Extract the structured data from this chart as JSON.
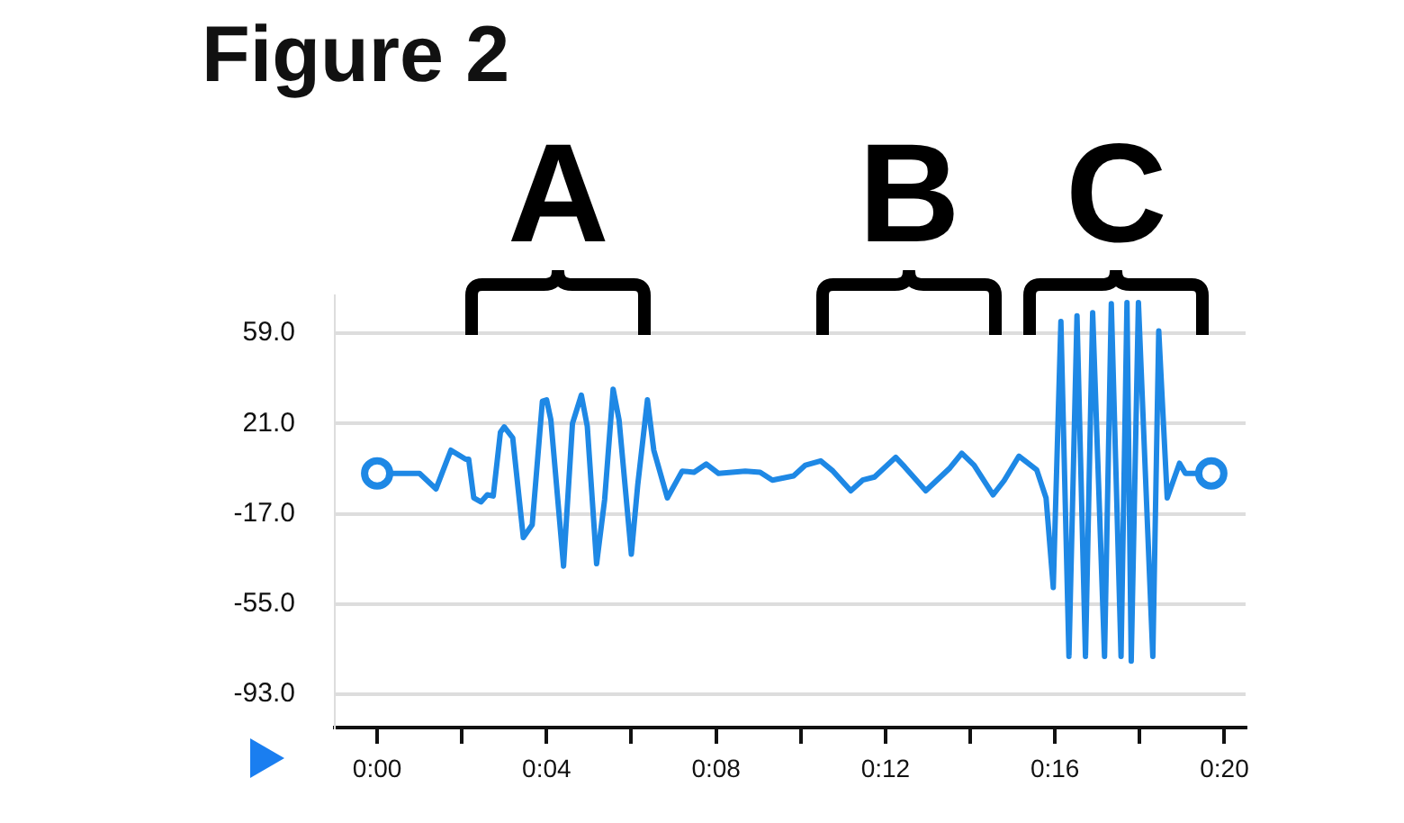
{
  "chart_data": {
    "type": "line",
    "title": "Figure 2",
    "x": [
      0,
      0.6,
      1.0,
      1.39,
      1.74,
      2.09,
      2.16,
      2.28,
      2.45,
      2.6,
      2.74,
      2.91,
      3.0,
      3.2,
      3.45,
      3.66,
      3.9,
      4.0,
      4.1,
      4.4,
      4.61,
      4.82,
      4.96,
      5.18,
      5.37,
      5.57,
      5.71,
      6.0,
      6.15,
      6.38,
      6.53,
      6.85,
      7.2,
      7.48,
      7.77,
      8.06,
      8.69,
      9.04,
      9.33,
      9.83,
      10.11,
      10.47,
      10.76,
      11.18,
      11.46,
      11.74,
      12.24,
      12.45,
      12.95,
      13.52,
      13.8,
      14.09,
      14.54,
      14.8,
      15.15,
      15.57,
      15.79,
      15.96,
      16.14,
      16.33,
      16.52,
      16.72,
      16.89,
      17.17,
      17.33,
      17.56,
      17.7,
      17.8,
      17.97,
      18.31,
      18.45,
      18.65,
      18.94,
      19.08,
      19.69
    ],
    "series": [
      {
        "color": "#1e88e5",
        "values": [
          0,
          0,
          0,
          -6.5,
          9.8,
          6,
          6,
          -10.3,
          -12,
          -9,
          -9.5,
          17.4,
          19.6,
          15,
          -27,
          -21.6,
          30.4,
          31,
          22.6,
          -39,
          21,
          33,
          19.9,
          -38,
          -11,
          35.5,
          22.6,
          -34,
          -5,
          31,
          9.8,
          -10.3,
          1,
          0.5,
          4,
          0,
          1,
          0.5,
          -2.8,
          -1,
          3.5,
          5.3,
          1,
          -7.3,
          -2.8,
          -1.5,
          6.8,
          2.8,
          -7.3,
          2.3,
          8.5,
          3.5,
          -9,
          -3,
          7.3,
          1.5,
          -10.3,
          -48,
          64,
          -77,
          66.4,
          -77,
          67.7,
          -77,
          71.5,
          -77,
          72,
          -79,
          72,
          -77,
          60,
          -10.3,
          4.3,
          0,
          0
        ]
      }
    ],
    "xlim": [
      -1,
      20.5
    ],
    "xticks": [
      {
        "value": 0,
        "label": "0:00"
      },
      {
        "value": 2,
        "label": null
      },
      {
        "value": 4,
        "label": "0:04"
      },
      {
        "value": 6,
        "label": null
      },
      {
        "value": 8,
        "label": "0:08"
      },
      {
        "value": 10,
        "label": null
      },
      {
        "value": 12,
        "label": "0:12"
      },
      {
        "value": 14,
        "label": null
      },
      {
        "value": 16,
        "label": "0:16"
      },
      {
        "value": 18,
        "label": null
      },
      {
        "value": 20,
        "label": "0:20"
      }
    ],
    "ylim": [
      -107,
      75
    ],
    "yticks": [
      {
        "value": -93,
        "label": "-93.0"
      },
      {
        "value": -55,
        "label": "-55.0"
      },
      {
        "value": -17,
        "label": "-17.0"
      },
      {
        "value": 21,
        "label": "21.0"
      },
      {
        "value": 59,
        "label": "59.0"
      }
    ],
    "grid": "y",
    "annotations": [
      "A",
      "B",
      "C"
    ]
  }
}
